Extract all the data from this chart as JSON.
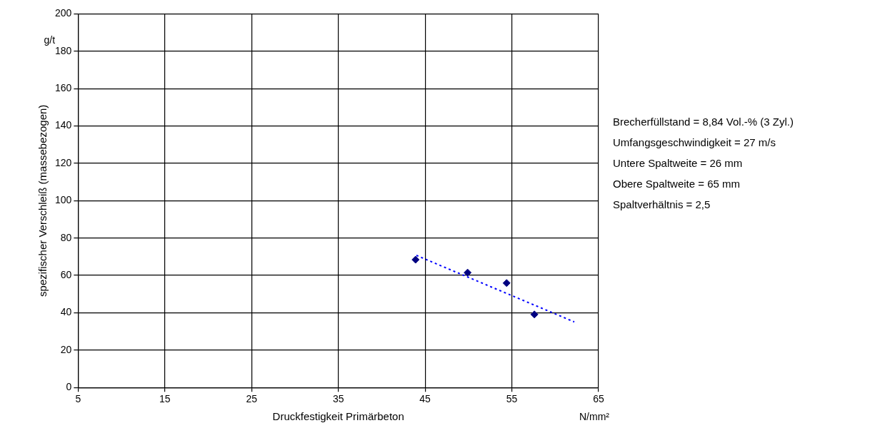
{
  "chart_data": {
    "type": "scatter",
    "xlabel": "Druckfestigkeit Primärbeton",
    "ylabel": "spezifischer Verschleiß (massebezogen)",
    "annotations": [
      "g/t",
      "N/mm²",
      "Brecherfüllstand = 8,84 Vol.-% (3 Zyl.)",
      "Umfangsgeschwindigkeit = 27 m/s",
      "Untere Spaltweite = 26 mm",
      "Obere Spaltweite = 65 mm",
      "Spaltverhältnis = 2,5"
    ],
    "series": [
      {
        "type": "scatter",
        "color": "#000080",
        "marker": "diamond",
        "x": [
          43.9,
          49.9,
          54.4,
          57.6
        ],
        "values": [
          68.4,
          61.5,
          55.9,
          39.1
        ]
      },
      {
        "type": "line",
        "color": "#0000ff",
        "line_style": "dotted",
        "marker": "none",
        "x": [
          44.0,
          62.2
        ],
        "values": [
          70.7,
          35.1
        ]
      }
    ],
    "xlim": [
      5,
      65
    ],
    "xticks": [
      5,
      15,
      25,
      35,
      45,
      55,
      65
    ],
    "ylim": [
      0,
      200
    ],
    "yticks": [
      0,
      20,
      40,
      60,
      80,
      100,
      120,
      140,
      160,
      180,
      200
    ],
    "grid": true,
    "legend": false
  }
}
